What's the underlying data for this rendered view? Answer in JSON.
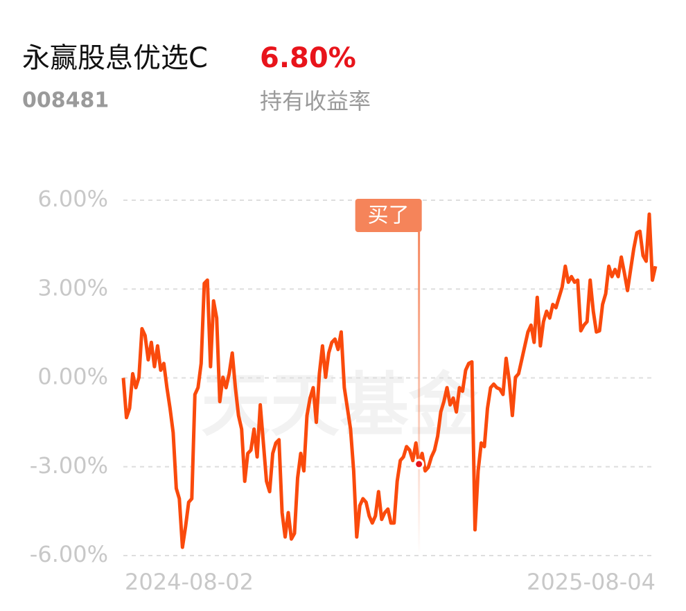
{
  "header": {
    "name": "永赢股息优选C",
    "return": "6.80%",
    "code": "008481",
    "return_label": "持有收益率"
  },
  "chart_data": {
    "type": "line",
    "watermark": "天天基金",
    "categories": [
      "2024-08-02",
      null,
      null,
      null,
      null,
      null,
      null,
      null,
      null,
      null,
      null,
      null,
      null,
      null,
      null,
      null,
      null,
      null,
      null,
      null,
      null,
      null,
      null,
      null,
      null,
      null,
      null,
      null,
      null,
      null,
      null,
      null,
      null,
      null,
      null,
      null,
      null,
      null,
      null,
      null,
      null,
      null,
      null,
      null,
      null,
      null,
      null,
      null,
      null,
      null,
      null,
      null,
      null,
      null,
      null,
      null,
      null,
      null,
      null,
      null,
      null,
      null,
      null,
      null,
      null,
      null,
      null,
      null,
      null,
      null,
      null,
      null,
      null,
      null,
      null,
      null,
      null,
      null,
      null,
      null,
      null,
      null,
      null,
      null,
      null,
      null,
      null,
      null,
      null,
      null,
      null,
      null,
      null,
      null,
      null,
      null,
      null,
      null,
      null,
      null,
      null,
      null,
      null,
      null,
      null,
      null,
      null,
      null,
      null,
      null,
      null,
      null,
      null,
      null,
      null,
      null,
      null,
      null,
      null,
      null,
      null,
      null,
      null,
      null,
      null,
      null,
      null,
      null,
      null,
      null,
      null,
      null,
      null,
      null,
      null,
      null,
      null,
      null,
      null,
      null,
      null,
      null,
      null,
      null,
      null,
      null,
      null,
      null,
      null,
      null,
      null,
      null,
      null,
      null,
      null,
      null,
      null,
      null,
      null,
      null,
      null,
      null,
      null,
      null,
      null,
      null,
      null,
      null,
      null,
      null,
      null,
      "2025-08-04"
    ],
    "series": [
      {
        "color": "#fa4a0c",
        "values": [
          0,
          -1.34,
          -1.03,
          0.14,
          -0.33,
          0.02,
          1.66,
          1.43,
          0.61,
          1.2,
          0.38,
          1.08,
          0.26,
          0.49,
          -0.33,
          -1.03,
          -1.85,
          -3.73,
          -4.08,
          -5.72,
          -5.02,
          -4.2,
          -4.08,
          -0.56,
          -0.33,
          0.49,
          3.19,
          3.3,
          0.38,
          2.6,
          2.02,
          -0.8,
          0.02,
          -0.33,
          0.14,
          0.84,
          -0.33,
          -1.27,
          -1.73,
          -3.49,
          -2.55,
          -2.44,
          -1.73,
          -2.67,
          -0.91,
          -2.2,
          -3.49,
          -3.84,
          -2.55,
          -2.2,
          -2.09,
          -4.55,
          -5.37,
          -4.55,
          -5.44,
          -5.25,
          -3.38,
          -2.55,
          -3.14,
          -1.27,
          -0.68,
          -0.33,
          -1.5,
          0.14,
          1.08,
          0.02,
          0.84,
          1.2,
          1.31,
          0.96,
          1.55,
          -0.33,
          -1.03,
          -1.73,
          -3.14,
          -5.37,
          -4.31,
          -4.08,
          -4.2,
          -4.66,
          -4.9,
          -4.66,
          -3.84,
          -4.78,
          -4.55,
          -4.43,
          -4.9,
          -4.9,
          -3.49,
          -2.79,
          -2.67,
          -2.32,
          -2.44,
          -2.79,
          -2.2,
          -2.91,
          -2.55,
          -3.14,
          -3.02,
          -2.67,
          -2.44,
          -1.97,
          -1.15,
          -0.8,
          -0.33,
          -0.91,
          -0.68,
          -1.15,
          -0.33,
          -0.45,
          0.26,
          0.49,
          0.54,
          -5.13,
          -3.14,
          -2.2,
          -2.32,
          -1.03,
          -0.33,
          -0.21,
          -0.33,
          -0.38,
          -0.56,
          0.66,
          -0.09,
          -1.27,
          0.02,
          0.14,
          0.61,
          1.08,
          1.55,
          1.78,
          1.2,
          2.72,
          1.08,
          1.9,
          2.25,
          2.02,
          2.48,
          2.37,
          2.72,
          3.07,
          3.77,
          3.23,
          3.42,
          3.23,
          3.3,
          1.59,
          1.78,
          1.9,
          3.3,
          2.25,
          1.55,
          1.59,
          2.48,
          2.84,
          3.77,
          3.42,
          3.66,
          3.42,
          4.08,
          3.54,
          2.95,
          3.66,
          4.36,
          4.9,
          4.95,
          4.13,
          3.94,
          5.53,
          3.3,
          3.77
        ]
      }
    ],
    "annotation": {
      "text": "买了",
      "index": 95
    },
    "ylim": [
      -6,
      6
    ],
    "yticks": [
      {
        "value": 6,
        "label": "6.00%"
      },
      {
        "value": 3,
        "label": "3.00%"
      },
      {
        "value": 0,
        "label": "0.00%"
      },
      {
        "value": -3,
        "label": "-3.00%"
      },
      {
        "value": -6,
        "label": "-6.00%"
      }
    ],
    "grid": true
  }
}
